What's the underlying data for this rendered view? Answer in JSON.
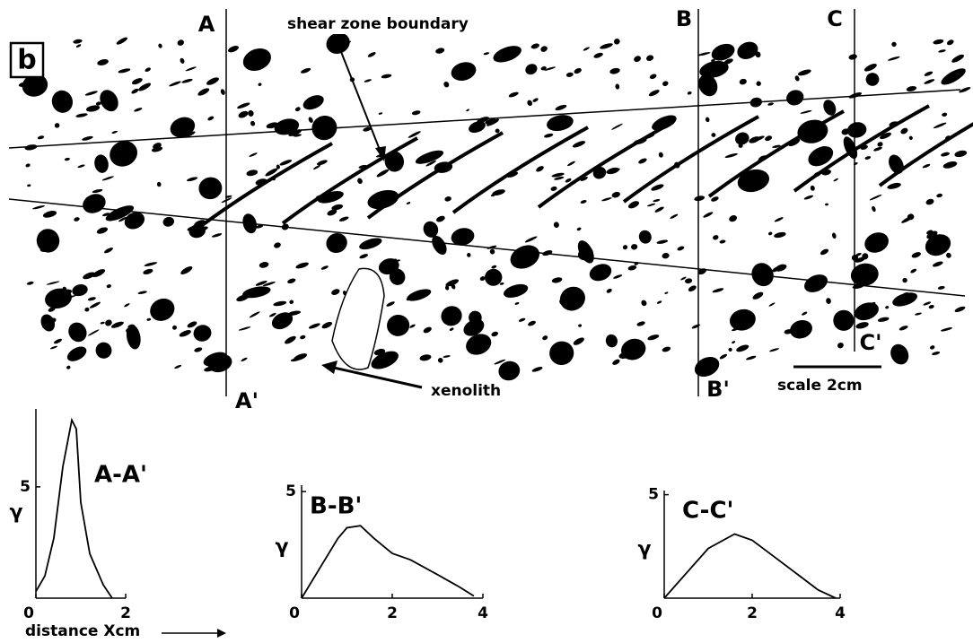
{
  "diagram": {
    "panel_label": "b",
    "section_lines": [
      {
        "top": "A",
        "bottom": "A'"
      },
      {
        "top": "B",
        "bottom": "B'"
      },
      {
        "top": "C",
        "bottom": "C'"
      }
    ],
    "annotations": {
      "boundary": "shear zone boundary",
      "xenolith": "xenolith",
      "scale": "scale  2cm"
    }
  },
  "chart_data": [
    {
      "type": "line",
      "title": "A-A'",
      "y_label": "γ",
      "x_label": "distance Xcm",
      "x": [
        0,
        0.2,
        0.4,
        0.6,
        0.8,
        0.9,
        1.0,
        1.2,
        1.5,
        1.7
      ],
      "values": [
        0.3,
        1.0,
        2.7,
        5.9,
        8.0,
        7.6,
        4.3,
        2.0,
        0.6,
        0
      ],
      "color": "#000000",
      "xlim": [
        0,
        2
      ],
      "ylim": [
        0,
        8.5
      ],
      "xticks": [
        0,
        2
      ],
      "yticks": [
        5
      ]
    },
    {
      "type": "line",
      "title": "B-B'",
      "y_label": "γ",
      "x": [
        0,
        0.4,
        0.8,
        1.0,
        1.3,
        1.6,
        2.0,
        2.4,
        3.0,
        3.5,
        3.8
      ],
      "values": [
        0,
        1.4,
        2.8,
        3.3,
        3.4,
        2.8,
        2.1,
        1.8,
        1.1,
        0.5,
        0.1
      ],
      "color": "#000000",
      "xlim": [
        0,
        4
      ],
      "ylim": [
        0,
        5.3
      ],
      "xticks": [
        0,
        2,
        4
      ],
      "yticks": [
        5
      ]
    },
    {
      "type": "line",
      "title": "C-C'",
      "y_label": "γ",
      "x": [
        0,
        0.5,
        1.0,
        1.6,
        2.0,
        2.5,
        3.0,
        3.5,
        3.9
      ],
      "values": [
        0,
        1.2,
        2.4,
        3.1,
        2.8,
        2.0,
        1.2,
        0.4,
        0
      ],
      "color": "#000000",
      "xlim": [
        0,
        4
      ],
      "ylim": [
        0,
        5.2
      ],
      "xticks": [
        0,
        2,
        4
      ],
      "yticks": [
        5
      ]
    }
  ]
}
